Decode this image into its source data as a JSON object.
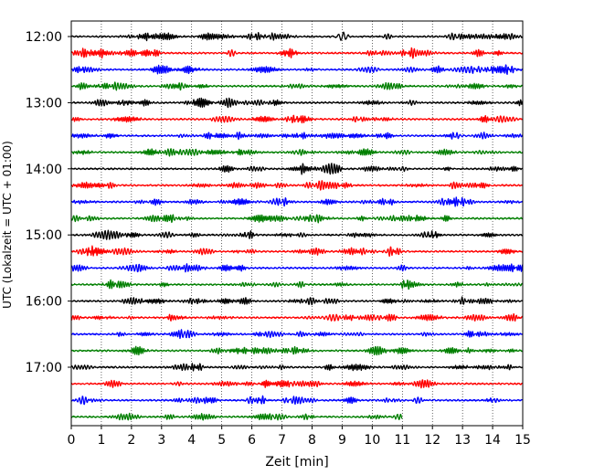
{
  "chart_data": {
    "type": "line",
    "title": "",
    "xlabel": "Zeit  [min]",
    "ylabel": "UTC (Lokalzeit = UTC + 01:00)",
    "xlim": [
      0,
      15
    ],
    "x_ticks": [
      "0",
      "1",
      "2",
      "3",
      "4",
      "5",
      "6",
      "7",
      "8",
      "9",
      "10",
      "11",
      "12",
      "13",
      "14",
      "15"
    ],
    "y_tick_labels": [
      "12:00",
      "13:00",
      "14:00",
      "15:00",
      "16:00",
      "17:00"
    ],
    "grid": "vertical dotted at each minute",
    "trace_minutes": 15,
    "colors": [
      "#000000",
      "#ff0000",
      "#0000ff",
      "#007f00"
    ],
    "start_hour": "12:00",
    "end_time": "17:56",
    "last_trace_end_minute": 11,
    "notable_event": {
      "trace": "12:00",
      "minute": 9.0
    }
  }
}
